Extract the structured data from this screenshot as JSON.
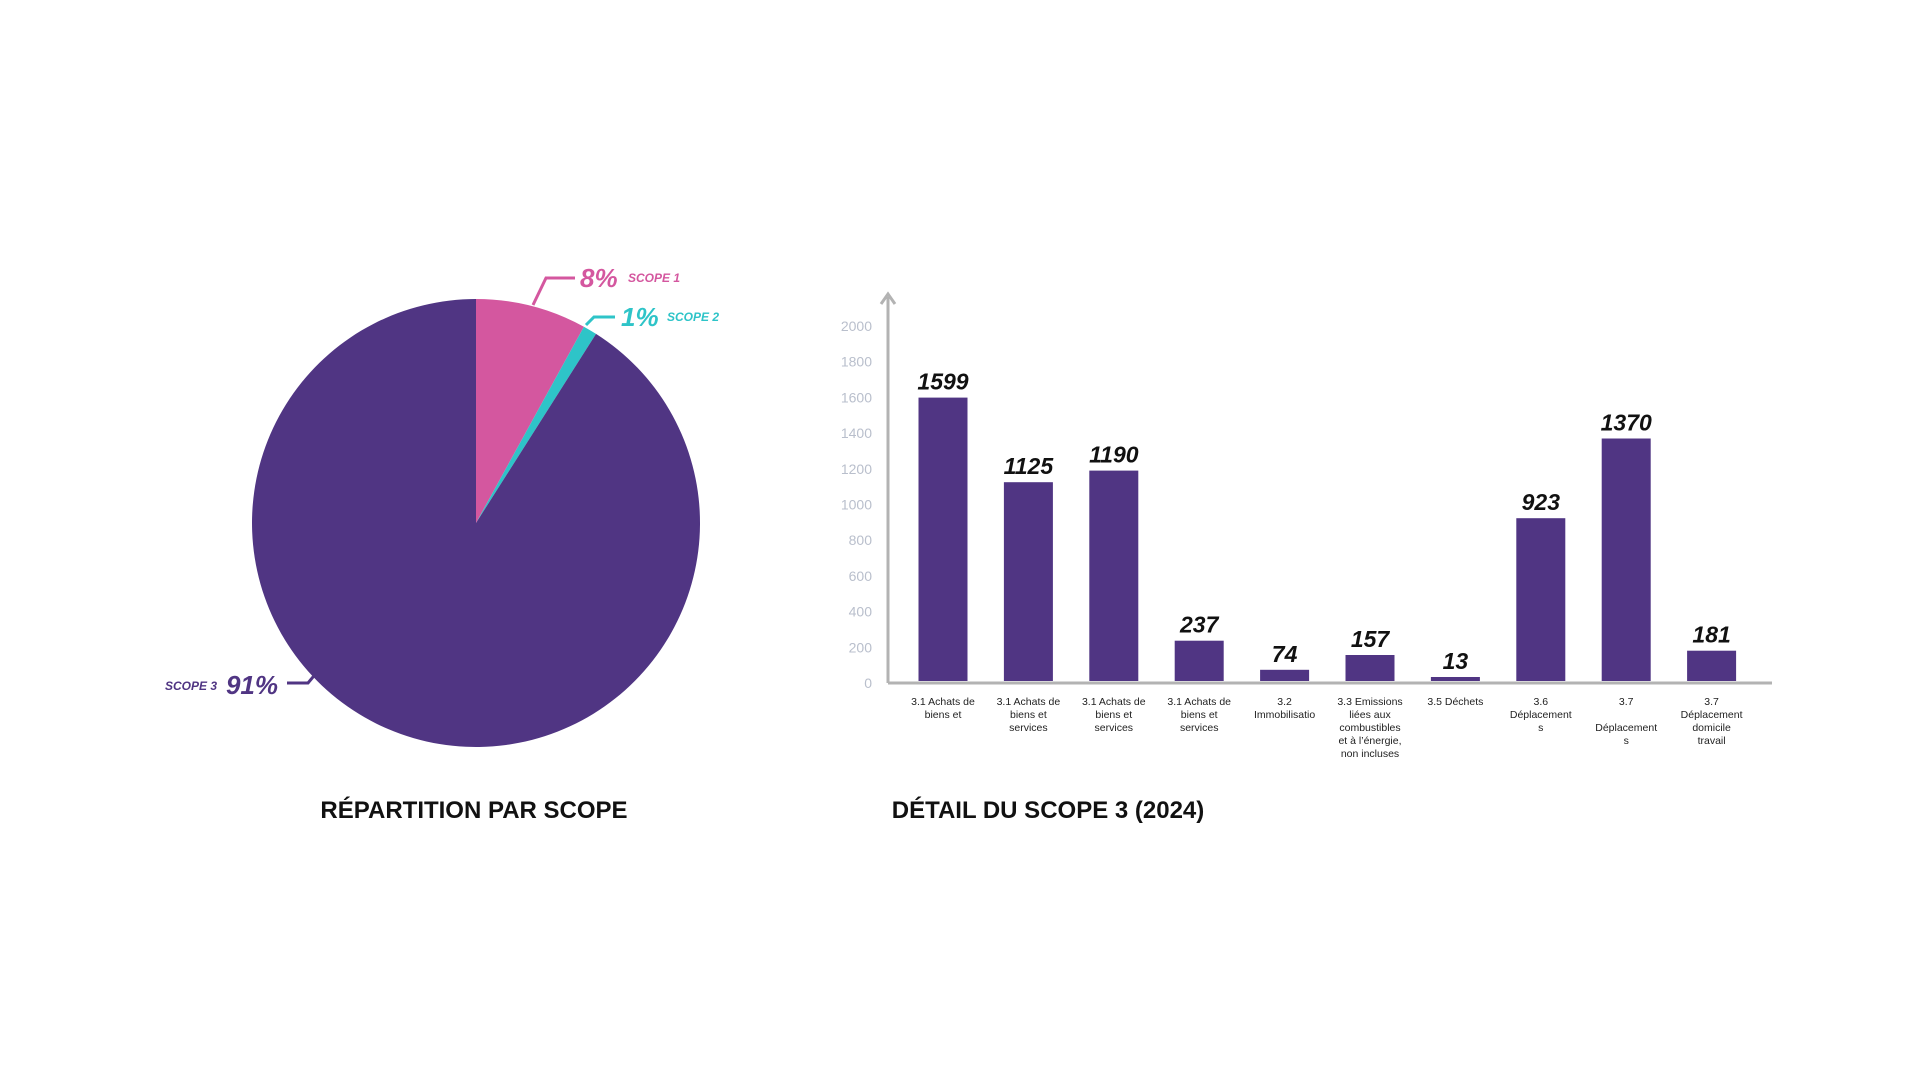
{
  "colors": {
    "scope1": "#d4579f",
    "scope2": "#2ec4c8",
    "scope3": "#503583",
    "bar": "#503583",
    "axis": "#b3b3b3"
  },
  "chart_data": [
    {
      "type": "pie",
      "title": "RÉPARTITION PAR SCOPE",
      "slices": [
        {
          "name": "SCOPE 1",
          "label": "8%",
          "value": 8,
          "color": "#d4579f"
        },
        {
          "name": "SCOPE 2",
          "label": "1%",
          "value": 1,
          "color": "#2ec4c8"
        },
        {
          "name": "SCOPE 3",
          "label": "91%",
          "value": 91,
          "color": "#503583"
        }
      ]
    },
    {
      "type": "bar",
      "title": "DÉTAIL DU SCOPE 3 (2024)",
      "xlabel": "",
      "ylabel": "",
      "ylim": [
        0,
        2000
      ],
      "yticks": [
        0,
        200,
        400,
        600,
        800,
        1000,
        1200,
        1400,
        1600,
        1800,
        2000
      ],
      "grid": false,
      "categories": [
        [
          "3.1 Achats de",
          "biens et"
        ],
        [
          "3.1 Achats de",
          "biens et",
          "services"
        ],
        [
          "3.1 Achats de",
          "biens et",
          "services"
        ],
        [
          "3.1 Achats de",
          "biens et",
          "services"
        ],
        [
          "3.2",
          "Immobilisatio"
        ],
        [
          "3.3 Emissions",
          "liées aux",
          "combustibles",
          "et à l’énergie,",
          "non incluses"
        ],
        [
          "3.5 Déchets"
        ],
        [
          "3.6",
          "Déplacement",
          "s"
        ],
        [
          "3.7",
          "",
          "Déplacement",
          "s"
        ],
        [
          "3.7",
          "Déplacement",
          "domicile",
          "travail"
        ]
      ],
      "values": [
        1599,
        1125,
        1190,
        237,
        74,
        157,
        13,
        923,
        1370,
        181
      ],
      "value_labels": [
        "1599",
        "1125",
        "1190",
        "237",
        "74",
        "157",
        "13",
        "923",
        "1370",
        "181"
      ]
    }
  ]
}
